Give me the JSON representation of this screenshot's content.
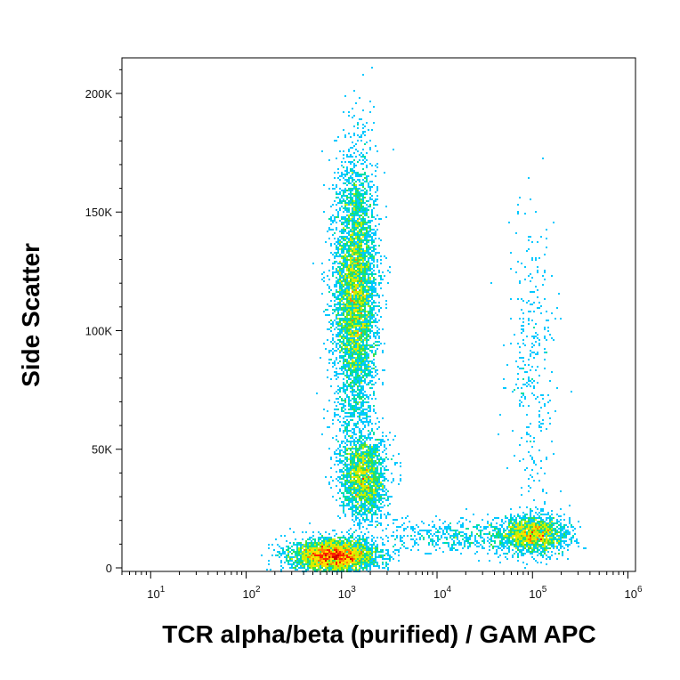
{
  "chart_data": {
    "type": "scatter",
    "title": "",
    "xlabel": "TCR alpha/beta (purified) / GAM APC",
    "ylabel": "Side Scatter",
    "x_scale": "log",
    "xlim": [
      5,
      1200000
    ],
    "ylim": [
      -1500,
      215000
    ],
    "x_ticks": [
      {
        "value": 10,
        "base": "10",
        "exp": "1"
      },
      {
        "value": 100,
        "base": "10",
        "exp": "2"
      },
      {
        "value": 1000,
        "base": "10",
        "exp": "3"
      },
      {
        "value": 10000,
        "base": "10",
        "exp": "4"
      },
      {
        "value": 100000,
        "base": "10",
        "exp": "5"
      },
      {
        "value": 1000000,
        "base": "10",
        "exp": "6"
      }
    ],
    "y_ticks": [
      {
        "value": 0,
        "label": "0"
      },
      {
        "value": 50000,
        "label": "50K"
      },
      {
        "value": 100000,
        "label": "100K"
      },
      {
        "value": 150000,
        "label": "150K"
      },
      {
        "value": 200000,
        "label": "200K"
      }
    ],
    "colormap": [
      "#0000c8",
      "#0050ff",
      "#00c8ff",
      "#00e0a0",
      "#40e040",
      "#c8f000",
      "#ffe000",
      "#ff8000",
      "#ff2000",
      "#d00000"
    ],
    "populations": [
      {
        "x_center": 1400,
        "y_center": 115000,
        "x_spread_decades": 0.11,
        "y_spread": 28000,
        "count": 5200
      },
      {
        "x_center": 1700,
        "y_center": 38000,
        "x_spread_decades": 0.12,
        "y_spread": 9000,
        "count": 2000
      },
      {
        "x_center": 850,
        "y_center": 5000,
        "x_spread_decades": 0.22,
        "y_spread": 3500,
        "count": 3800
      },
      {
        "x_center": 100000,
        "y_center": 14000,
        "x_spread_decades": 0.18,
        "y_spread": 4000,
        "count": 1800
      },
      {
        "x_center": 100000,
        "y_center": 85000,
        "x_spread_decades": 0.12,
        "y_spread": 35000,
        "count": 320
      },
      {
        "x_center": 20000,
        "y_center": 13000,
        "x_spread_decades": 0.45,
        "y_spread": 3500,
        "count": 500
      }
    ],
    "grid": false,
    "legend": "none"
  }
}
